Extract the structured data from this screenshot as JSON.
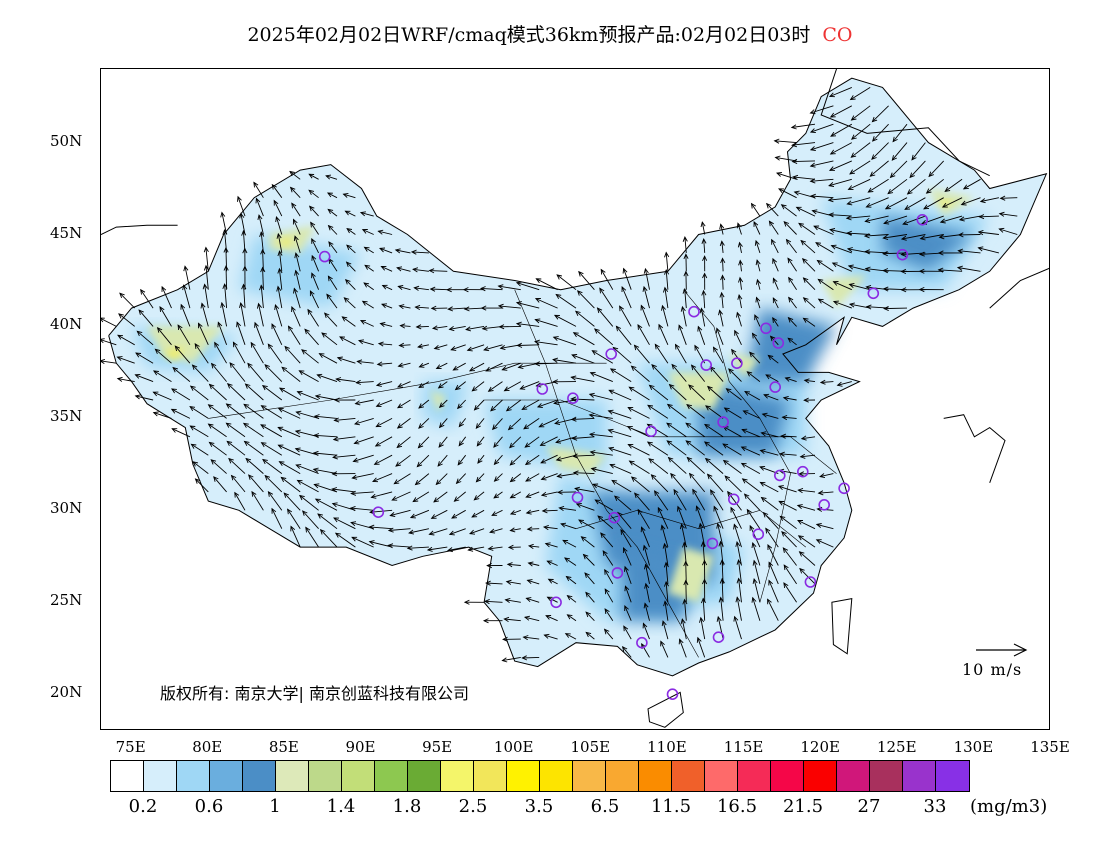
{
  "header": {
    "title": "2025年02月02日WRF/cmaq模式36km预报产品:02月02日03时",
    "species": "CO"
  },
  "map": {
    "lat_labels": [
      "50N",
      "45N",
      "40N",
      "35N",
      "30N",
      "25N",
      "20N"
    ],
    "lat_values": [
      50,
      45,
      40,
      35,
      30,
      25,
      20
    ],
    "lon_labels": [
      "75E",
      "80E",
      "85E",
      "90E",
      "95E",
      "100E",
      "105E",
      "110E",
      "115E",
      "120E",
      "125E",
      "130E",
      "135E"
    ],
    "lon_values": [
      75,
      80,
      85,
      90,
      95,
      100,
      105,
      110,
      115,
      120,
      125,
      130,
      135
    ],
    "lon_range": [
      73,
      135
    ],
    "lat_range": [
      18,
      54
    ],
    "wind_reference": "10 m/s",
    "copyright": "版权所有: 南京大学| 南京创蓝科技有限公司",
    "stations": [
      [
        87.6,
        43.8
      ],
      [
        91.1,
        29.9
      ],
      [
        101.8,
        36.6
      ],
      [
        103.8,
        36.1
      ],
      [
        106.3,
        38.5
      ],
      [
        111.7,
        40.8
      ],
      [
        112.5,
        37.9
      ],
      [
        114.5,
        38.0
      ],
      [
        116.4,
        39.9
      ],
      [
        117.2,
        39.1
      ],
      [
        117.0,
        36.7
      ],
      [
        113.6,
        34.8
      ],
      [
        108.9,
        34.3
      ],
      [
        104.1,
        30.7
      ],
      [
        106.5,
        29.6
      ],
      [
        114.3,
        30.6
      ],
      [
        112.9,
        28.2
      ],
      [
        115.9,
        28.7
      ],
      [
        117.3,
        31.9
      ],
      [
        118.8,
        32.1
      ],
      [
        120.2,
        30.3
      ],
      [
        121.5,
        31.2
      ],
      [
        119.3,
        26.1
      ],
      [
        113.3,
        23.1
      ],
      [
        108.3,
        22.8
      ],
      [
        110.3,
        20.0
      ],
      [
        106.7,
        26.6
      ],
      [
        102.7,
        25.0
      ],
      [
        123.4,
        41.8
      ],
      [
        125.3,
        43.9
      ],
      [
        126.6,
        45.8
      ]
    ],
    "colors": {
      "low": "#d6eefb",
      "mid": "#9fd7f5",
      "high": "#4b8ec6",
      "green_light": "#d9e8b0",
      "green": "#b5d67a",
      "yellow": "#f2ee66",
      "station": "#8a2be2"
    }
  },
  "colorbar": {
    "colors": [
      "#ffffff",
      "#d6eefb",
      "#9fd7f5",
      "#6aaede",
      "#4b8ec6",
      "#dde9b9",
      "#bdd98a",
      "#c2de78",
      "#8dc850",
      "#6aab34",
      "#f4f56a",
      "#f2e65a",
      "#fff200",
      "#fde400",
      "#f8b848",
      "#f9a830",
      "#fa8c00",
      "#f0602a",
      "#fe6a6a",
      "#f52b57",
      "#f50648",
      "#fa0000",
      "#d0177a",
      "#a8305d",
      "#9933cc",
      "#8830e6"
    ],
    "labels": [
      "0.2",
      "0.6",
      "1",
      "1.4",
      "1.8",
      "2.5",
      "3.5",
      "6.5",
      "11.5",
      "16.5",
      "21.5",
      "27",
      "33"
    ],
    "unit": "(mg/m3)"
  }
}
